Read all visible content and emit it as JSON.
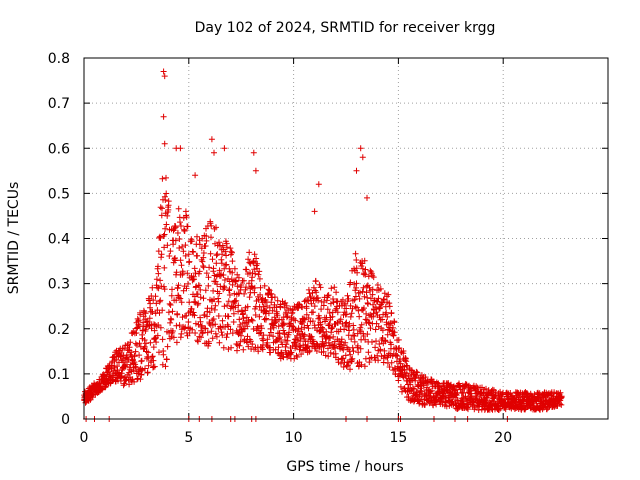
{
  "chart_data": {
    "type": "scatter",
    "title": "Day 102 of 2024, SRMTID for receiver krgg",
    "xlabel": "GPS time / hours",
    "ylabel": "SRMTID / TECUs",
    "xlim": [
      0,
      25
    ],
    "ylim": [
      0,
      0.8
    ],
    "xticks": [
      0,
      5,
      10,
      15,
      20
    ],
    "yticks": [
      0,
      0.1,
      0.2,
      0.3,
      0.4,
      0.5,
      0.6,
      0.7,
      0.8
    ],
    "xtick_labels": [
      "0",
      "5",
      "10",
      "15",
      "20"
    ],
    "ytick_labels": [
      "0",
      "0.1",
      "0.2",
      "0.3",
      "0.4",
      "0.5",
      "0.6",
      "0.7",
      "0.8"
    ],
    "grid": true,
    "marker": "+",
    "color": "#e00000",
    "envelope": {
      "description": "approximate envelope of the dense scatter; x in hours, y in TECU",
      "x": [
        0.0,
        0.5,
        1.0,
        1.5,
        2.0,
        2.5,
        3.0,
        3.5,
        3.8,
        4.0,
        4.3,
        4.6,
        5.0,
        5.5,
        6.0,
        6.5,
        7.0,
        7.5,
        8.0,
        8.5,
        9.0,
        9.5,
        10.0,
        10.5,
        11.0,
        11.5,
        12.0,
        12.5,
        13.0,
        13.5,
        14.0,
        14.5,
        15.0,
        15.5,
        16.0,
        16.5,
        17.0,
        18.0,
        19.0,
        20.0,
        21.0,
        22.0,
        22.8
      ],
      "low": [
        0.03,
        0.05,
        0.07,
        0.08,
        0.07,
        0.08,
        0.1,
        0.12,
        0.1,
        0.12,
        0.15,
        0.18,
        0.18,
        0.17,
        0.16,
        0.16,
        0.15,
        0.15,
        0.15,
        0.15,
        0.14,
        0.13,
        0.13,
        0.14,
        0.15,
        0.14,
        0.13,
        0.11,
        0.1,
        0.12,
        0.13,
        0.12,
        0.07,
        0.04,
        0.03,
        0.03,
        0.03,
        0.02,
        0.02,
        0.02,
        0.02,
        0.02,
        0.03
      ],
      "high": [
        0.06,
        0.08,
        0.11,
        0.15,
        0.18,
        0.22,
        0.27,
        0.33,
        0.6,
        0.5,
        0.45,
        0.48,
        0.45,
        0.4,
        0.45,
        0.42,
        0.38,
        0.3,
        0.4,
        0.3,
        0.28,
        0.26,
        0.25,
        0.26,
        0.32,
        0.28,
        0.3,
        0.26,
        0.38,
        0.35,
        0.3,
        0.28,
        0.18,
        0.12,
        0.1,
        0.09,
        0.08,
        0.08,
        0.07,
        0.06,
        0.06,
        0.06,
        0.06
      ]
    },
    "spikes": [
      {
        "x": 3.8,
        "y": 0.77
      },
      {
        "x": 3.85,
        "y": 0.76
      },
      {
        "x": 3.8,
        "y": 0.67
      },
      {
        "x": 3.85,
        "y": 0.61
      },
      {
        "x": 4.4,
        "y": 0.6
      },
      {
        "x": 4.6,
        "y": 0.6
      },
      {
        "x": 5.3,
        "y": 0.54
      },
      {
        "x": 6.1,
        "y": 0.62
      },
      {
        "x": 6.2,
        "y": 0.59
      },
      {
        "x": 6.7,
        "y": 0.6
      },
      {
        "x": 8.1,
        "y": 0.59
      },
      {
        "x": 8.2,
        "y": 0.55
      },
      {
        "x": 11.2,
        "y": 0.52
      },
      {
        "x": 11.0,
        "y": 0.46
      },
      {
        "x": 13.2,
        "y": 0.6
      },
      {
        "x": 13.3,
        "y": 0.58
      },
      {
        "x": 13.0,
        "y": 0.55
      },
      {
        "x": 13.5,
        "y": 0.49
      }
    ],
    "baseline_markers_x": [
      0.1,
      0.5,
      1.2,
      5.0,
      5.5,
      6.1,
      7.0,
      7.2,
      8.0,
      8.2,
      12.5,
      13.5,
      15.0,
      15.1,
      16.7,
      17.7,
      18.3,
      20.2
    ]
  }
}
